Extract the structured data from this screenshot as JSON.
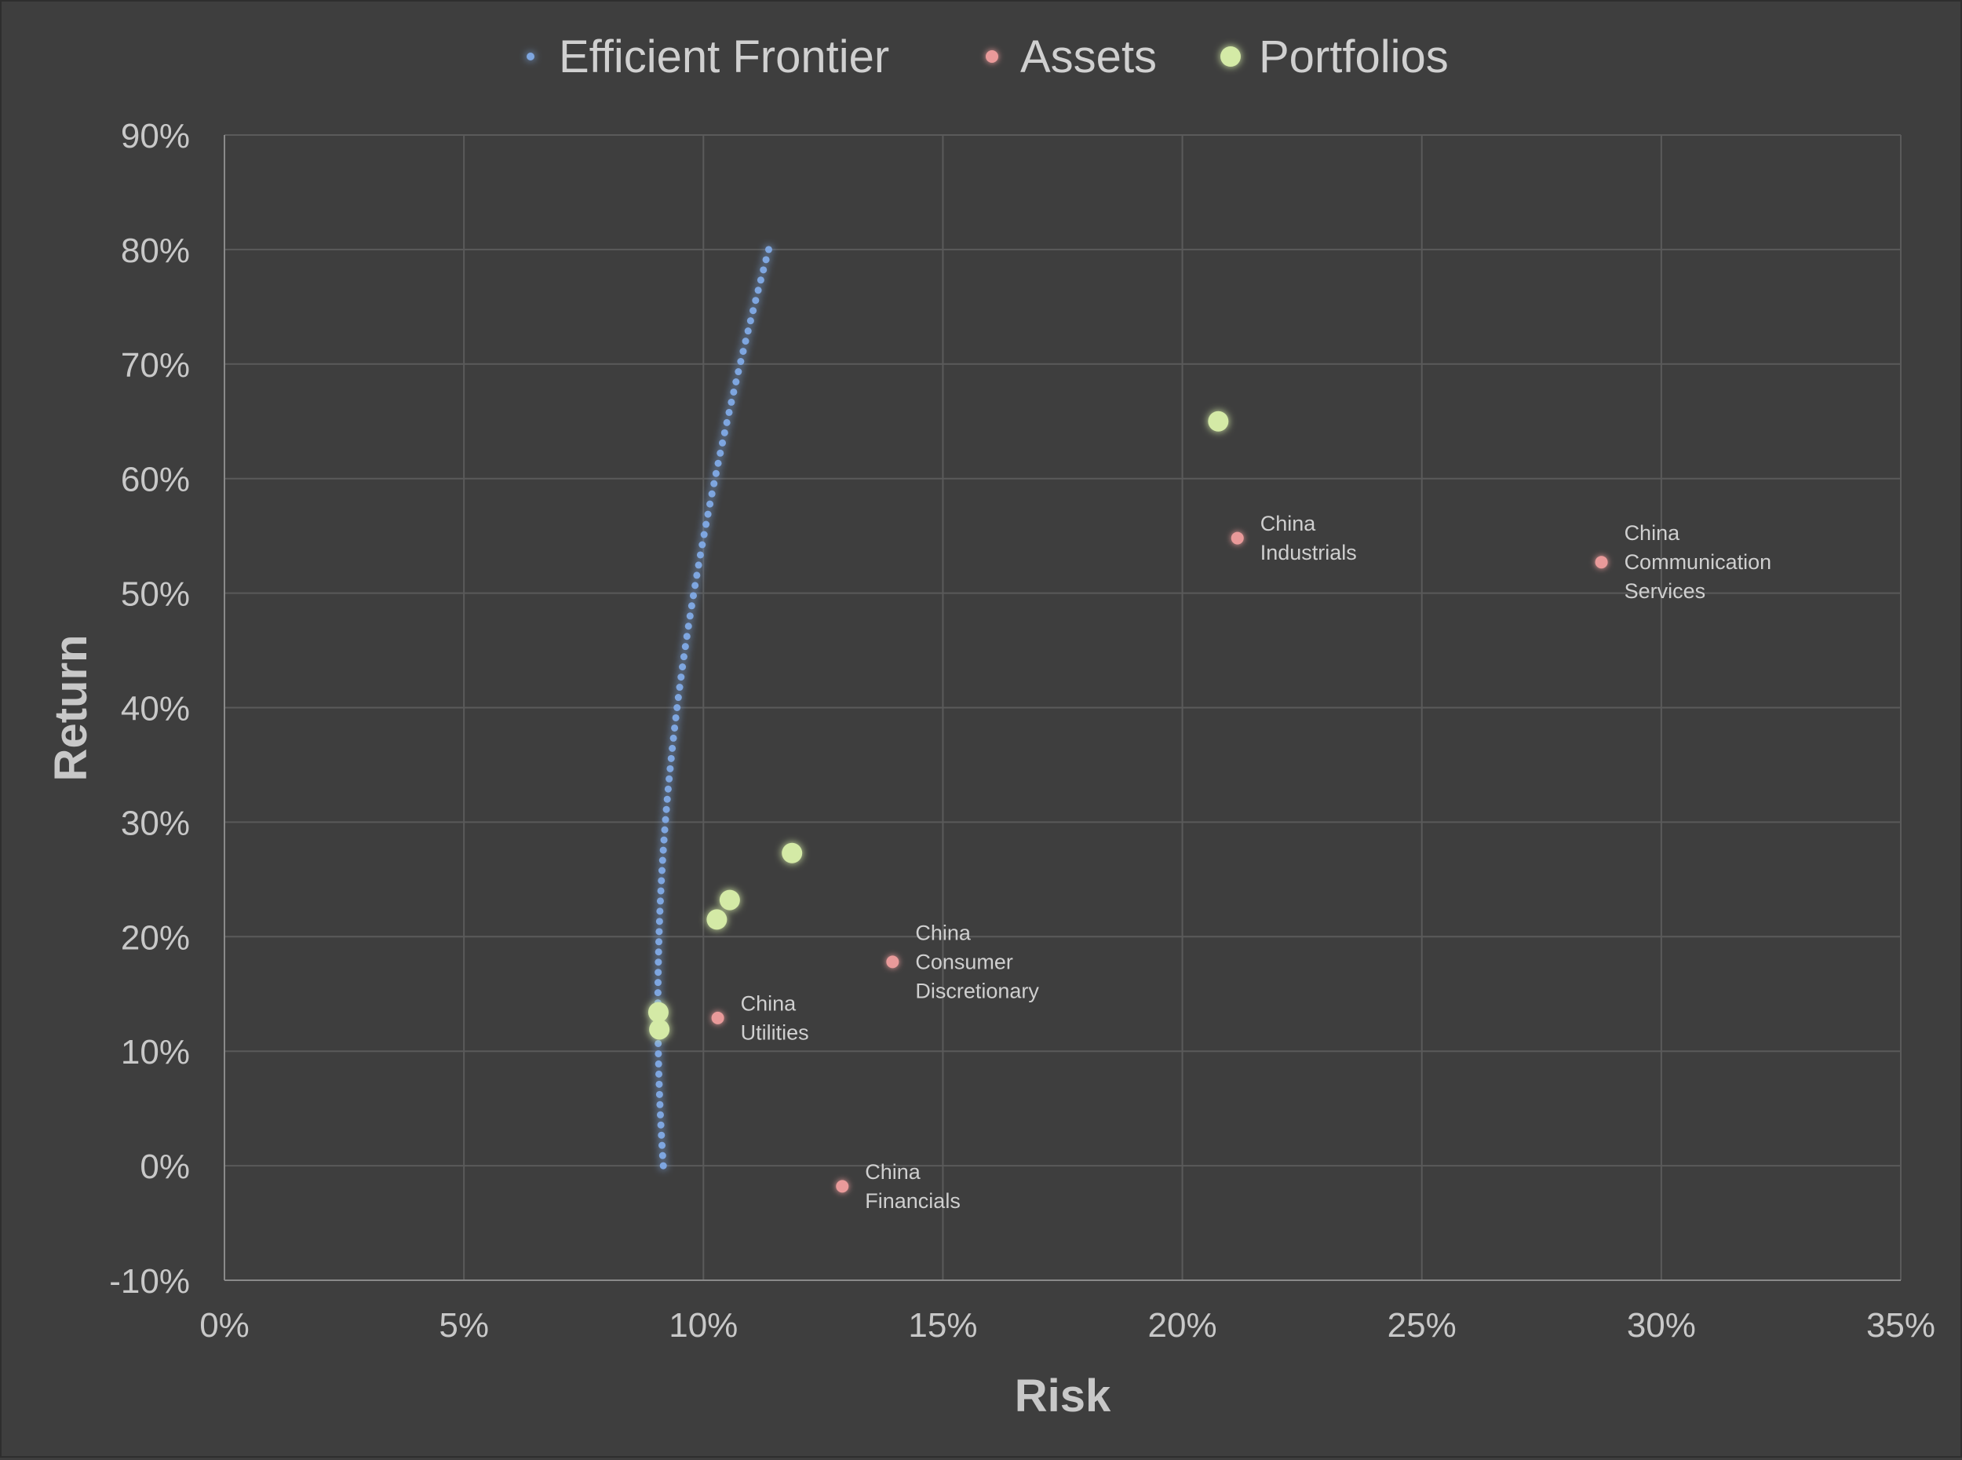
{
  "chart_data": {
    "type": "scatter",
    "title": "",
    "xlabel": "Risk",
    "ylabel": "Return",
    "xlim": [
      0,
      0.35
    ],
    "ylim": [
      -0.1,
      0.9
    ],
    "x_ticks": [
      0,
      0.05,
      0.1,
      0.15,
      0.2,
      0.25,
      0.3,
      0.35
    ],
    "x_tick_labels": [
      "0%",
      "5%",
      "10%",
      "15%",
      "20%",
      "25%",
      "30%",
      "35%"
    ],
    "y_ticks": [
      -0.1,
      0,
      0.1,
      0.2,
      0.3,
      0.4,
      0.5,
      0.6,
      0.7,
      0.8,
      0.9
    ],
    "y_tick_labels": [
      "-10%",
      "0%",
      "10%",
      "20%",
      "30%",
      "40%",
      "50%",
      "60%",
      "70%",
      "80%",
      "90%"
    ],
    "grid": true,
    "legend_position": "top-center",
    "colors": {
      "background": "#3e3e3e",
      "frontier": "#7ea6e0",
      "frontier_glow": "#2f5ea8",
      "assets": "#e99a9a",
      "assets_glow": "#9a4a4a",
      "portfolios": "#d4eaa6",
      "portfolios_glow": "#8fb04a"
    },
    "series": [
      {
        "name": "Efficient Frontier",
        "marker": "small-dot",
        "frontier_curve": {
          "min_variance_return": 0.138,
          "min_risk": 0.0905,
          "curvature": 0.1038,
          "return_from": 0.0,
          "return_to": 0.8,
          "points": 90
        }
      },
      {
        "name": "Assets",
        "marker": "dot",
        "points": [
          {
            "x": 0.2115,
            "y": 0.548,
            "label_lines": [
              "China",
              "Industrials"
            ]
          },
          {
            "x": 0.2875,
            "y": 0.527,
            "label_lines": [
              "China",
              "Communication",
              "Services"
            ]
          },
          {
            "x": 0.1395,
            "y": 0.178,
            "label_lines": [
              "China",
              "Consumer",
              "Discretionary"
            ]
          },
          {
            "x": 0.103,
            "y": 0.129,
            "label_lines": [
              "China",
              "Utilities"
            ]
          },
          {
            "x": 0.129,
            "y": -0.018,
            "label_lines": [
              "China",
              "Financials"
            ]
          }
        ]
      },
      {
        "name": "Portfolios",
        "marker": "large-dot",
        "points": [
          {
            "x": 0.2075,
            "y": 0.65
          },
          {
            "x": 0.1185,
            "y": 0.273
          },
          {
            "x": 0.1055,
            "y": 0.232
          },
          {
            "x": 0.1028,
            "y": 0.215
          },
          {
            "x": 0.0906,
            "y": 0.134
          },
          {
            "x": 0.0908,
            "y": 0.119
          }
        ]
      }
    ]
  }
}
